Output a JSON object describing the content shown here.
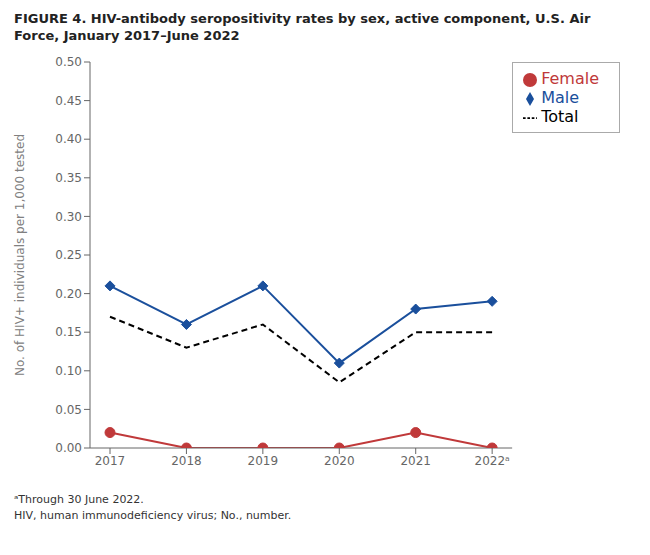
{
  "chart_data": {
    "type": "line",
    "title": "FIGURE 4. HIV-antibody seropositivity rates by sex, active component, U.S. Air Force, January 2017–June 2022",
    "categories": [
      "2017",
      "2018",
      "2019",
      "2020",
      "2021",
      "2022ᵃ"
    ],
    "series": [
      {
        "name": "Male",
        "color": "#1a4f9c",
        "marker": "diamond",
        "line_style": "solid",
        "values": [
          0.21,
          0.16,
          0.21,
          0.11,
          0.18,
          0.19
        ]
      },
      {
        "name": "Female",
        "color": "#c0393a",
        "marker": "circle",
        "line_style": "solid",
        "values": [
          0.02,
          0.0,
          0.0,
          0.0,
          0.02,
          0.0
        ]
      },
      {
        "name": "Total",
        "color": "#000000",
        "marker": "none",
        "line_style": "dashed",
        "values": [
          0.17,
          0.13,
          0.16,
          0.085,
          0.15,
          0.15
        ]
      }
    ],
    "ylabel": "No. of HIV+ individuals per 1,000 tested",
    "ylim": [
      0,
      0.5
    ],
    "yticks": [
      {
        "value": 0,
        "label": "0.00"
      },
      0.05,
      {
        "value": 0.1,
        "label": "0.10"
      },
      0.15,
      {
        "value": 0.2,
        "label": "0.20"
      },
      0.25,
      {
        "value": 0.3,
        "label": "0.30"
      },
      0.35,
      {
        "value": 0.4,
        "label": "0.40"
      },
      0.45,
      {
        "value": 0.5,
        "label": "0.50"
      }
    ],
    "grid": false,
    "legend": "upper right",
    "annotations": [
      "ᵃThrough 30 June 2022.",
      "HIV, human immunodeficiency virus; No., number."
    ]
  }
}
